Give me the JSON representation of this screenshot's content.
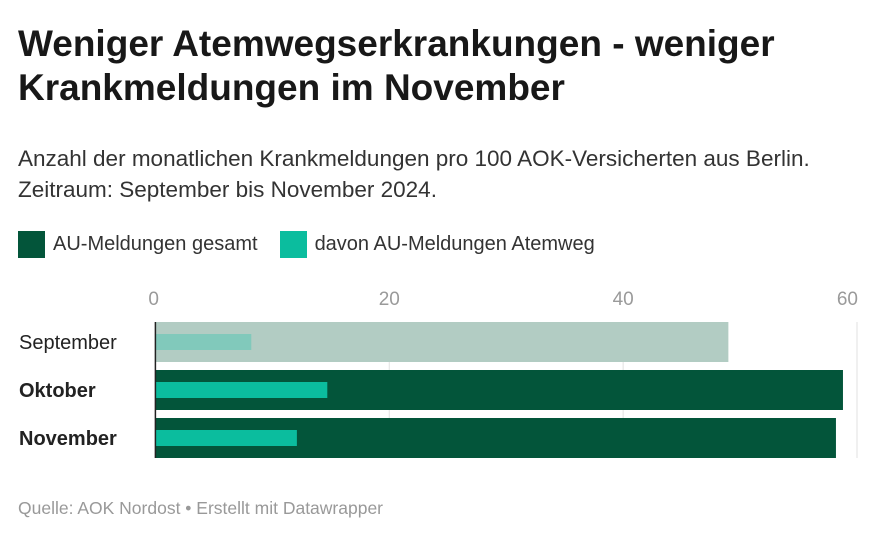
{
  "title": "Weniger Atemwegserkrankungen - weniger Krankmeldungen im November",
  "subtitle": "Anzahl der monatlichen Krankmeldungen pro 100 AOK-Versicherten aus Berlin. Zeitraum: September bis November 2024.",
  "footer": "Quelle: AOK Nordost • Erstellt mit Datawrapper",
  "colors": {
    "total": "#03553a",
    "atemweg": "#0bbd9e",
    "total_muted": "#b2ccc3",
    "atemweg_muted": "#81c9bb"
  },
  "chart_data": {
    "type": "bar",
    "orientation": "horizontal",
    "categories": [
      "September",
      "Oktober",
      "November"
    ],
    "highlighted": [
      false,
      true,
      true
    ],
    "series": [
      {
        "name": "AU-Meldungen gesamt",
        "values": [
          49.0,
          58.8,
          58.2
        ]
      },
      {
        "name": "davon AU-Meldungen Atemweg",
        "values": [
          8.2,
          14.7,
          12.1
        ]
      }
    ],
    "xlim": [
      0,
      60
    ],
    "xticks": [
      "0",
      "20",
      "40",
      "60"
    ],
    "xtick_values": [
      0,
      20,
      40,
      60
    ],
    "grid": true,
    "legend": "top-left"
  }
}
